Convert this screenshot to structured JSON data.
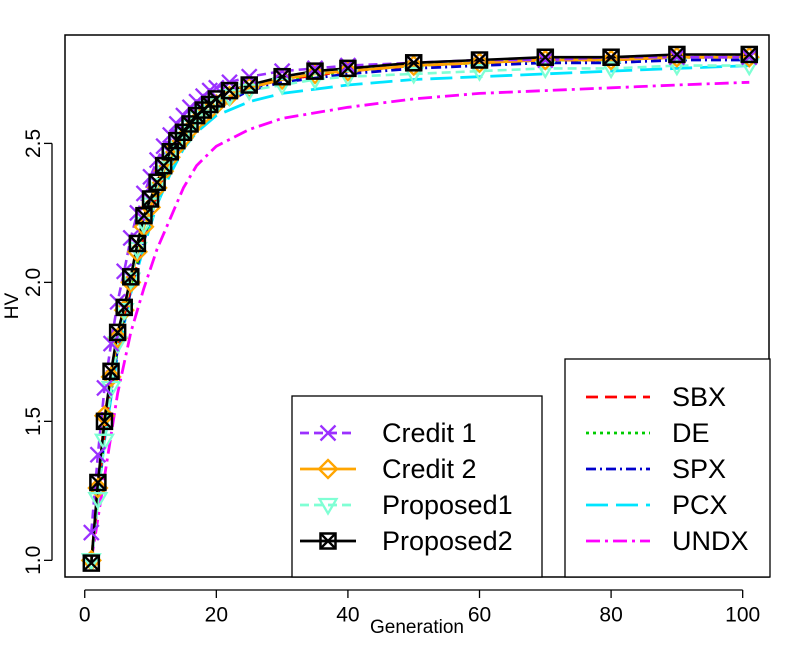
{
  "chart_data": {
    "type": "line",
    "title": "",
    "xlabel": "Generation",
    "ylabel": "HV",
    "xlim": [
      -3,
      104
    ],
    "ylim": [
      0.94,
      2.89
    ],
    "x_ticks": [
      0,
      20,
      40,
      60,
      80,
      100
    ],
    "y_ticks": [
      1.0,
      1.5,
      2.0,
      2.5
    ],
    "legend_left_position": "bottom-center",
    "legend_right_position": "bottom-right",
    "series": [
      {
        "key": "credit1",
        "name": "Credit 1",
        "color": "#9B30FF",
        "dash": "9,5",
        "marker": "cross",
        "marker_step": 1,
        "x": [
          1,
          2,
          3,
          4,
          5,
          6,
          7,
          8,
          9,
          10,
          11,
          12,
          13,
          14,
          15,
          16,
          17,
          18,
          19,
          20,
          22,
          25,
          30,
          35,
          40,
          50,
          60,
          70,
          80,
          90,
          101
        ],
        "y": [
          1.1,
          1.38,
          1.62,
          1.78,
          1.93,
          2.04,
          2.16,
          2.25,
          2.32,
          2.38,
          2.44,
          2.49,
          2.53,
          2.57,
          2.6,
          2.63,
          2.65,
          2.67,
          2.69,
          2.7,
          2.72,
          2.74,
          2.76,
          2.77,
          2.78,
          2.79,
          2.8,
          2.8,
          2.81,
          2.81,
          2.81
        ]
      },
      {
        "key": "credit2",
        "name": "Credit 2",
        "color": "#FFA500",
        "dash": "none",
        "marker": "diamond",
        "marker_step": 1,
        "x": [
          1,
          2,
          3,
          4,
          5,
          6,
          7,
          8,
          9,
          10,
          11,
          12,
          13,
          14,
          15,
          16,
          17,
          18,
          19,
          20,
          22,
          25,
          30,
          35,
          40,
          50,
          60,
          70,
          80,
          90,
          101
        ],
        "y": [
          1.0,
          1.26,
          1.52,
          1.66,
          1.8,
          1.9,
          2.0,
          2.11,
          2.2,
          2.27,
          2.34,
          2.4,
          2.45,
          2.49,
          2.52,
          2.55,
          2.58,
          2.6,
          2.62,
          2.64,
          2.67,
          2.7,
          2.73,
          2.75,
          2.76,
          2.78,
          2.79,
          2.8,
          2.8,
          2.81,
          2.81
        ]
      },
      {
        "key": "proposed1",
        "name": "Proposed1",
        "color": "#7FFFD4",
        "dash": "9,5",
        "marker": "triangle-down",
        "marker_step": 1,
        "x": [
          1,
          2,
          3,
          4,
          5,
          6,
          7,
          8,
          9,
          10,
          11,
          12,
          13,
          14,
          15,
          16,
          17,
          18,
          19,
          20,
          22,
          25,
          30,
          35,
          40,
          50,
          60,
          70,
          80,
          90,
          101
        ],
        "y": [
          1.0,
          1.22,
          1.43,
          1.62,
          1.78,
          1.9,
          2.01,
          2.12,
          2.21,
          2.28,
          2.35,
          2.41,
          2.46,
          2.5,
          2.53,
          2.56,
          2.59,
          2.61,
          2.63,
          2.64,
          2.67,
          2.69,
          2.71,
          2.73,
          2.74,
          2.75,
          2.76,
          2.77,
          2.77,
          2.78,
          2.78
        ]
      },
      {
        "key": "proposed2",
        "name": "Proposed2",
        "color": "#000000",
        "dash": "none",
        "marker": "square-x",
        "marker_step": 1,
        "x": [
          1,
          2,
          3,
          4,
          5,
          6,
          7,
          8,
          9,
          10,
          11,
          12,
          13,
          14,
          15,
          16,
          17,
          18,
          19,
          20,
          22,
          25,
          30,
          35,
          40,
          50,
          60,
          70,
          80,
          90,
          101
        ],
        "y": [
          0.99,
          1.28,
          1.5,
          1.68,
          1.82,
          1.91,
          2.02,
          2.14,
          2.24,
          2.3,
          2.36,
          2.42,
          2.47,
          2.51,
          2.54,
          2.57,
          2.6,
          2.62,
          2.64,
          2.66,
          2.69,
          2.71,
          2.74,
          2.76,
          2.77,
          2.79,
          2.8,
          2.81,
          2.81,
          2.82,
          2.82
        ]
      },
      {
        "key": "sbx",
        "name": "SBX",
        "color": "#FF0000",
        "dash": "12,7",
        "marker": "none",
        "x": [
          1,
          3,
          5,
          7,
          9,
          11,
          13,
          15,
          17,
          20,
          25,
          30,
          40,
          50,
          60,
          70,
          80,
          90,
          101
        ],
        "y": [
          1.0,
          1.46,
          1.78,
          1.98,
          2.16,
          2.31,
          2.43,
          2.52,
          2.58,
          2.64,
          2.7,
          2.73,
          2.76,
          2.78,
          2.79,
          2.8,
          2.8,
          2.81,
          2.81
        ]
      },
      {
        "key": "de",
        "name": "DE",
        "color": "#00CC00",
        "dash": "3,4",
        "marker": "none",
        "x": [
          1,
          3,
          5,
          7,
          9,
          11,
          13,
          15,
          17,
          20,
          25,
          30,
          40,
          50,
          60,
          70,
          80,
          90,
          101
        ],
        "y": [
          1.0,
          1.45,
          1.77,
          1.98,
          2.16,
          2.31,
          2.43,
          2.52,
          2.58,
          2.64,
          2.7,
          2.73,
          2.76,
          2.78,
          2.79,
          2.8,
          2.8,
          2.81,
          2.81
        ]
      },
      {
        "key": "spx",
        "name": "SPX",
        "color": "#0000CC",
        "dash": "10,4,2,4",
        "marker": "none",
        "x": [
          1,
          3,
          5,
          7,
          9,
          11,
          13,
          15,
          17,
          20,
          25,
          30,
          40,
          50,
          60,
          70,
          80,
          90,
          101
        ],
        "y": [
          1.0,
          1.45,
          1.76,
          1.97,
          2.15,
          2.3,
          2.42,
          2.51,
          2.57,
          2.63,
          2.69,
          2.72,
          2.75,
          2.77,
          2.78,
          2.79,
          2.79,
          2.8,
          2.8
        ]
      },
      {
        "key": "pcx",
        "name": "PCX",
        "color": "#00E5FF",
        "dash": "22,8",
        "marker": "none",
        "x": [
          1,
          3,
          5,
          7,
          9,
          11,
          13,
          15,
          17,
          20,
          25,
          30,
          40,
          50,
          60,
          70,
          80,
          90,
          101
        ],
        "y": [
          1.0,
          1.43,
          1.74,
          1.96,
          2.13,
          2.28,
          2.39,
          2.48,
          2.54,
          2.6,
          2.65,
          2.68,
          2.71,
          2.73,
          2.74,
          2.75,
          2.76,
          2.77,
          2.78
        ]
      },
      {
        "key": "undx",
        "name": "UNDX",
        "color": "#FF00FF",
        "dash": "14,5,3,5",
        "marker": "none",
        "x": [
          1,
          3,
          5,
          7,
          9,
          11,
          13,
          15,
          17,
          20,
          25,
          30,
          40,
          50,
          60,
          70,
          80,
          90,
          101
        ],
        "y": [
          1.0,
          1.3,
          1.6,
          1.82,
          1.98,
          2.12,
          2.23,
          2.34,
          2.42,
          2.49,
          2.55,
          2.59,
          2.63,
          2.66,
          2.68,
          2.69,
          2.7,
          2.71,
          2.72
        ]
      }
    ],
    "legend_left": [
      "credit1",
      "credit2",
      "proposed1",
      "proposed2"
    ],
    "legend_right": [
      "sbx",
      "de",
      "spx",
      "pcx",
      "undx"
    ]
  }
}
